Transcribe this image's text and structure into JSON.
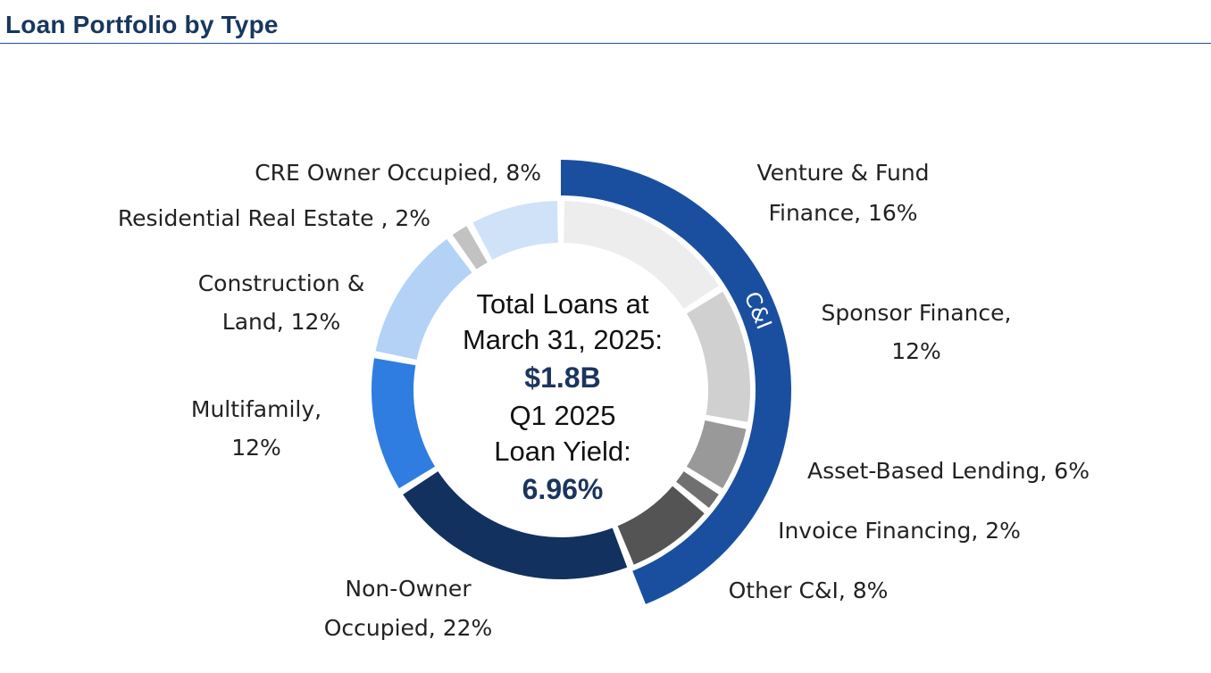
{
  "page": {
    "title": "Loan Portfolio by Type"
  },
  "center": {
    "line1": "Total Loans at",
    "line2": "March 31, 2025:",
    "total_value": "$1.8B",
    "line4": "Q1 2025",
    "line5": "Loan Yield:",
    "yield_value": "6.96%"
  },
  "chart_data": {
    "type": "pie",
    "variant": "donut",
    "unit": "%",
    "slices": [
      {
        "label_lines": [
          "Venture & Fund",
          "Finance, 16%"
        ],
        "category": "Venture & Fund Finance",
        "value": 16,
        "color": "#ededed"
      },
      {
        "label_lines": [
          "Sponsor Finance,",
          "12%"
        ],
        "category": "Sponsor Finance",
        "value": 12,
        "color": "#d0d0d0"
      },
      {
        "label_lines": [
          "Asset-Based Lending, 6%"
        ],
        "category": "Asset-Based Lending",
        "value": 6,
        "color": "#999999"
      },
      {
        "label_lines": [
          "Invoice Financing, 2%"
        ],
        "category": "Invoice Financing",
        "value": 2,
        "color": "#707070"
      },
      {
        "label_lines": [
          "Other C&I, 8%"
        ],
        "category": "Other C&I",
        "value": 8,
        "color": "#545454"
      },
      {
        "label_lines": [
          "Non-Owner",
          "Occupied, 22%"
        ],
        "category": "Non-Owner Occupied",
        "value": 22,
        "color": "#13315f"
      },
      {
        "label_lines": [
          "Multifamily,",
          "12%"
        ],
        "category": "Multifamily",
        "value": 12,
        "color": "#2f7de1"
      },
      {
        "label_lines": [
          "Construction &",
          "Land, 12%"
        ],
        "category": "Construction & Land",
        "value": 12,
        "color": "#b3d2f5"
      },
      {
        "label_lines": [
          "Residential Real Estate , 2%"
        ],
        "category": "Residential Real Estate",
        "value": 2,
        "color": "#c2c2c2"
      },
      {
        "label_lines": [
          "CRE Owner Occupied, 8%"
        ],
        "category": "CRE Owner Occupied",
        "value": 8,
        "color": "#cfe2f8"
      }
    ],
    "group_band": {
      "label": "C&I",
      "categories": [
        "Venture & Fund Finance",
        "Sponsor Finance",
        "Asset-Based Lending",
        "Invoice Financing",
        "Other C&I"
      ],
      "color": "#1a4fa0"
    }
  }
}
